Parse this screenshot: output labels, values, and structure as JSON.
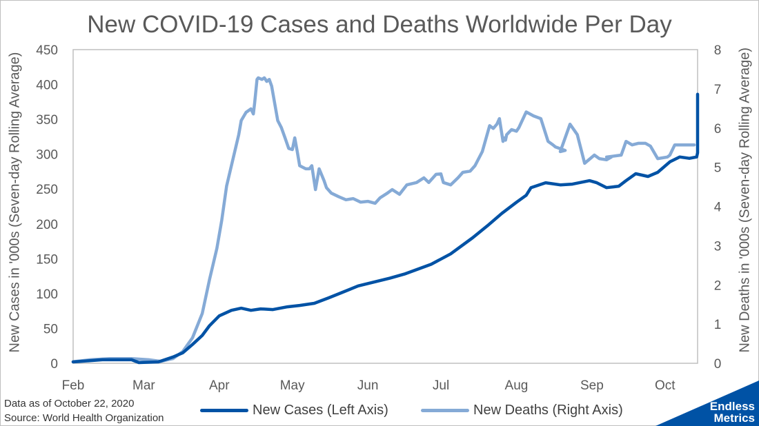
{
  "chart_data": {
    "type": "line",
    "title": "New COVID-19 Cases and Deaths Worldwide Per Day",
    "ylabel_left": "New Cases in '000s (Seven-day Rolling Average)",
    "ylabel_right": "New Deaths in '000s (Seven-day Rolling Average)",
    "xlabel": "",
    "x_unit": "days since Feb 1, 2020",
    "xlim": [
      -2,
      257
    ],
    "ylim_left": [
      0,
      450
    ],
    "ylim_right": [
      0,
      8
    ],
    "yticks_left": [
      "0",
      "50",
      "100",
      "150",
      "200",
      "250",
      "300",
      "350",
      "400",
      "450"
    ],
    "yticks_right": [
      "0",
      "1",
      "2",
      "3",
      "4",
      "5",
      "6",
      "7",
      "8"
    ],
    "xticks": [
      {
        "label": "Feb",
        "day": 0
      },
      {
        "label": "Mar",
        "day": 29
      },
      {
        "label": "Apr",
        "day": 60
      },
      {
        "label": "May",
        "day": 90
      },
      {
        "label": "Jun",
        "day": 121
      },
      {
        "label": "Jul",
        "day": 151
      },
      {
        "label": "Aug",
        "day": 182
      },
      {
        "label": "Sep",
        "day": 213
      },
      {
        "label": "Oct",
        "day": 243
      }
    ],
    "grid": false,
    "legend_position": "bottom",
    "series": [
      {
        "name": "New Cases (Left Axis)",
        "axis": "left",
        "color": "#0052a5",
        "x": [
          0,
          12,
          24,
          27,
          35,
          41,
          45,
          49,
          53,
          56,
          60,
          65,
          69,
          73,
          77,
          82,
          88,
          93,
          99,
          105,
          110,
          117,
          130,
          136,
          147,
          155,
          164,
          170,
          176,
          182,
          186,
          188,
          194,
          200,
          205,
          212,
          215,
          219,
          224,
          227,
          231,
          236,
          240,
          245,
          249,
          253,
          256,
          258,
          262,
          265,
          269,
          271,
          274,
          277,
          278,
          279
        ],
        "values": [
          2,
          5,
          5,
          1,
          2,
          9,
          15,
          27,
          40,
          54,
          68,
          76,
          79,
          76,
          78,
          77,
          81,
          83,
          86,
          94,
          101,
          111,
          122,
          128,
          142,
          157,
          180,
          197,
          215,
          231,
          241,
          252,
          259,
          256,
          257,
          262,
          259,
          252,
          254,
          262,
          272,
          268,
          274,
          289,
          296,
          294,
          296,
          302,
          323,
          343,
          360,
          373,
          386,
          386,
          386,
          386
        ]
      },
      {
        "name": "New Deaths (Right Axis)",
        "axis": "right",
        "color": "#85aad6",
        "x": [
          0,
          7,
          15,
          24,
          31,
          36,
          41,
          45,
          49,
          53,
          56,
          59,
          61,
          63,
          66,
          68,
          69,
          71,
          73,
          74,
          74.5,
          75.5,
          76,
          77.5,
          78.5,
          79.5,
          80.5,
          81.5,
          84,
          85.5,
          87,
          88.5,
          90,
          91,
          92,
          93,
          95.5,
          97,
          98,
          99.5,
          101,
          103,
          104,
          106,
          109,
          112,
          115,
          118,
          121,
          124,
          126,
          129,
          131,
          134,
          137,
          141,
          144,
          146,
          149,
          151,
          152,
          155,
          158,
          160,
          163,
          165,
          166.5,
          168,
          171,
          172.5,
          174,
          175,
          176.5,
          177,
          177.5,
          178,
          180,
          182,
          183,
          186,
          189,
          192,
          195,
          197,
          198,
          202,
          200,
          204,
          206,
          207,
          210,
          214,
          216,
          219,
          221,
          219,
          225,
          227,
          229.5,
          232,
          235,
          237,
          240,
          244,
          245,
          247,
          249,
          250,
          251,
          253,
          255
        ],
        "values": [
          0.04,
          0.09,
          0.12,
          0.12,
          0.09,
          0.05,
          0.12,
          0.3,
          0.65,
          1.27,
          2.14,
          2.93,
          3.64,
          4.52,
          5.31,
          5.83,
          6.19,
          6.4,
          6.49,
          6.36,
          6.63,
          7.24,
          7.28,
          7.24,
          7.28,
          7.19,
          7.24,
          7.07,
          6.19,
          6.01,
          5.75,
          5.48,
          5.45,
          5.75,
          5.4,
          5.04,
          4.96,
          4.96,
          5.04,
          4.43,
          4.96,
          4.66,
          4.48,
          4.34,
          4.25,
          4.17,
          4.2,
          4.11,
          4.13,
          4.08,
          4.22,
          4.34,
          4.43,
          4.31,
          4.55,
          4.61,
          4.73,
          4.61,
          4.82,
          4.83,
          4.61,
          4.55,
          4.73,
          4.87,
          4.9,
          5.04,
          5.22,
          5.4,
          6.06,
          5.99,
          6.1,
          6.24,
          5.66,
          5.75,
          5.69,
          5.83,
          5.96,
          5.92,
          6.01,
          6.41,
          6.31,
          6.24,
          5.66,
          5.57,
          5.52,
          5.43,
          5.4,
          6.1,
          5.92,
          5.83,
          5.1,
          5.31,
          5.22,
          5.19,
          5.26,
          5.26,
          5.31,
          5.66,
          5.57,
          5.61,
          5.61,
          5.54,
          5.22,
          5.26,
          5.31,
          5.57,
          5.57,
          5.57,
          5.57,
          5.57,
          5.57
        ]
      }
    ],
    "annotations": [
      "Data as of October 22, 2020",
      "Source: World Health Organization"
    ]
  },
  "notes": {
    "data_as_of": "Data as of October 22, 2020",
    "source": "Source: World Health Organization"
  },
  "legend": {
    "cases": "New Cases (Left Axis)",
    "deaths": "New Deaths (Right Axis)"
  },
  "logo": {
    "line1": "Endless",
    "line2": "Metrics",
    "color": "#0052a5"
  }
}
